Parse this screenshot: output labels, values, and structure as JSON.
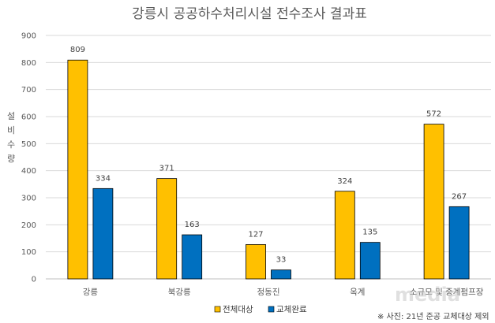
{
  "chart_data": {
    "type": "bar",
    "title": "강릉시 공공하수처리시설 전수조사 결과표",
    "ylabel": "설비수량",
    "xlabel": "",
    "categories": [
      "강릉",
      "북강릉",
      "정동진",
      "옥계",
      "소규모 및 중계펌프장"
    ],
    "series": [
      {
        "name": "전체대상",
        "values": [
          809,
          371,
          127,
          324,
          572
        ],
        "color": "#FFC000"
      },
      {
        "name": "교체완료",
        "values": [
          334,
          163,
          33,
          135,
          267
        ],
        "color": "#0070C0"
      }
    ],
    "ylim": [
      0,
      900
    ],
    "yticks": [
      0,
      100,
      200,
      300,
      400,
      500,
      600,
      700,
      800,
      900
    ],
    "grid": true,
    "legend_position": "bottom"
  },
  "footnote": "※ 사진: 21년 준공 교체대상 제외",
  "watermark": "media"
}
